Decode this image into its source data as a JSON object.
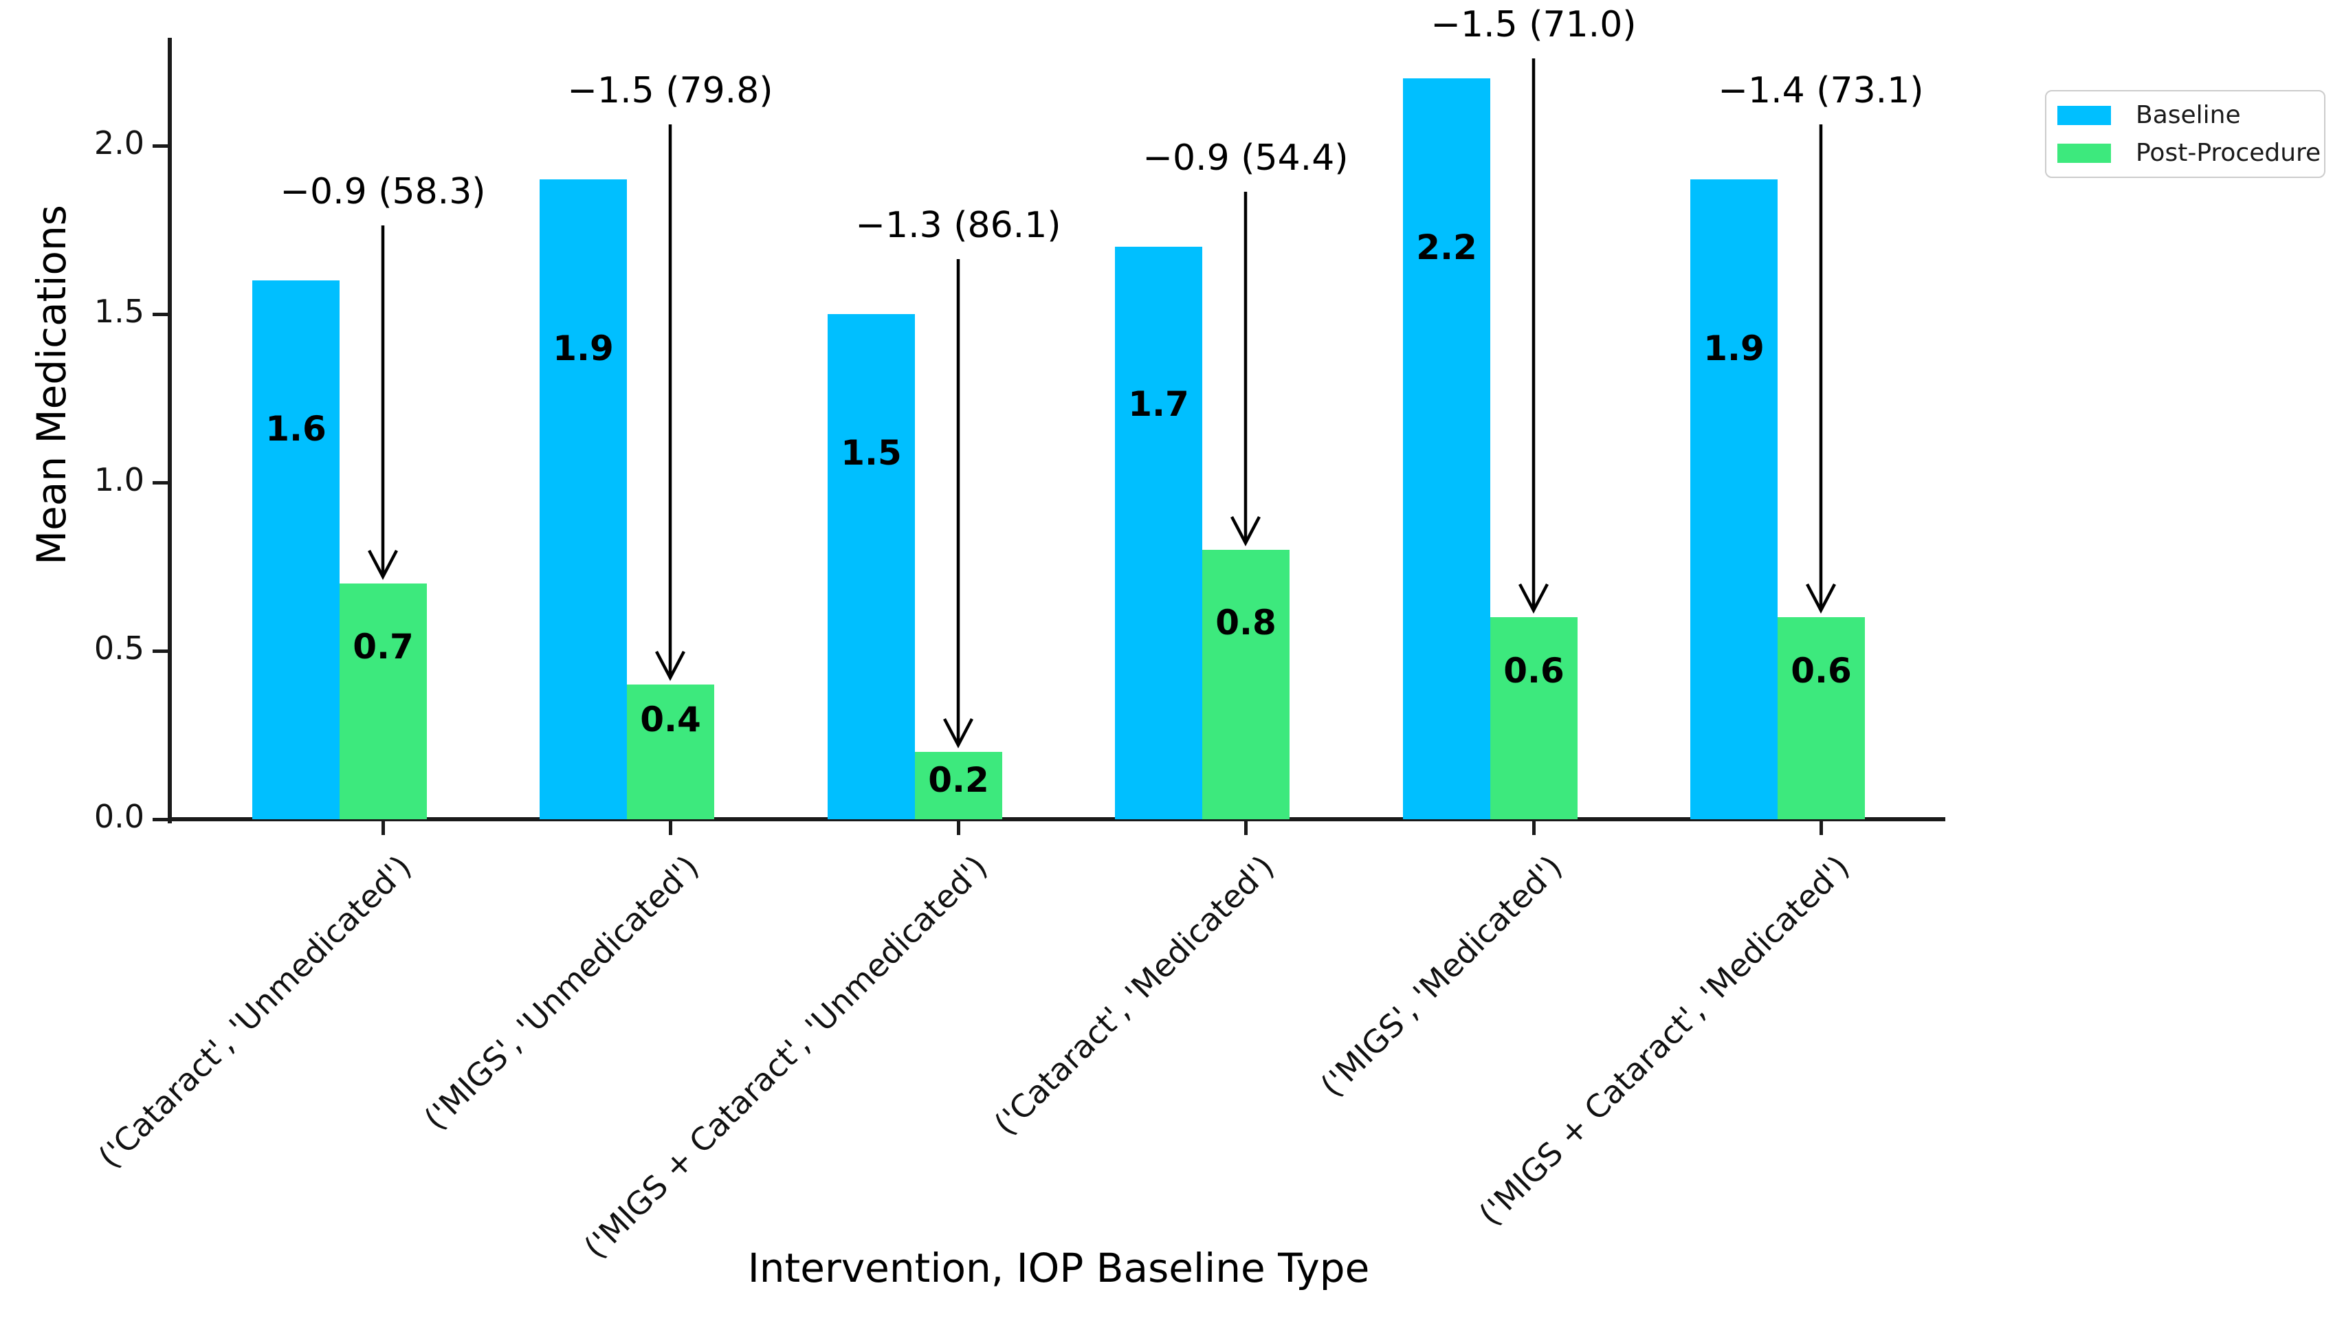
{
  "chart_data": {
    "type": "bar",
    "title": "",
    "xlabel": "Intervention, IOP Baseline Type",
    "ylabel": "Mean Medications",
    "categories": [
      "('Cataract', 'Unmedicated')",
      "('MIGS', 'Unmedicated')",
      "('MIGS + Cataract', 'Unmedicated')",
      "('Cataract', 'Medicated')",
      "('MIGS', 'Medicated')",
      "('MIGS + Cataract', 'Medicated')"
    ],
    "series": [
      {
        "name": "Baseline",
        "color": "#00BFFF",
        "values": [
          1.6,
          1.9,
          1.5,
          1.7,
          2.2,
          1.9
        ],
        "labels": [
          "1.6",
          "1.9",
          "1.5",
          "1.7",
          "2.2",
          "1.9"
        ]
      },
      {
        "name": "Post-Procedure",
        "color": "#3DE97D",
        "values": [
          0.7,
          0.4,
          0.2,
          0.8,
          0.6,
          0.6
        ],
        "labels": [
          "0.7",
          "0.4",
          "0.2",
          "0.8",
          "0.6",
          "0.6"
        ]
      }
    ],
    "annotations": [
      "−0.9 (58.3)",
      "−1.5 (79.8)",
      "−1.3 (86.1)",
      "−0.9 (54.4)",
      "−1.5 (71.0)",
      "−1.4 (73.1)"
    ],
    "yticks": [
      "0.0",
      "0.5",
      "1.0",
      "1.5",
      "2.0"
    ],
    "ytick_values": [
      0,
      0.5,
      1.0,
      1.5,
      2.0
    ],
    "ylim": [
      0,
      2.32
    ],
    "grid": false,
    "legend": {
      "position": "upper right",
      "entries": [
        "Baseline",
        "Post-Procedure"
      ]
    },
    "colors": {
      "axis": "#1a1a1a",
      "text": "#000000",
      "arrow": "#000000",
      "legend_border": "#cccccc",
      "background": "#ffffff"
    }
  }
}
